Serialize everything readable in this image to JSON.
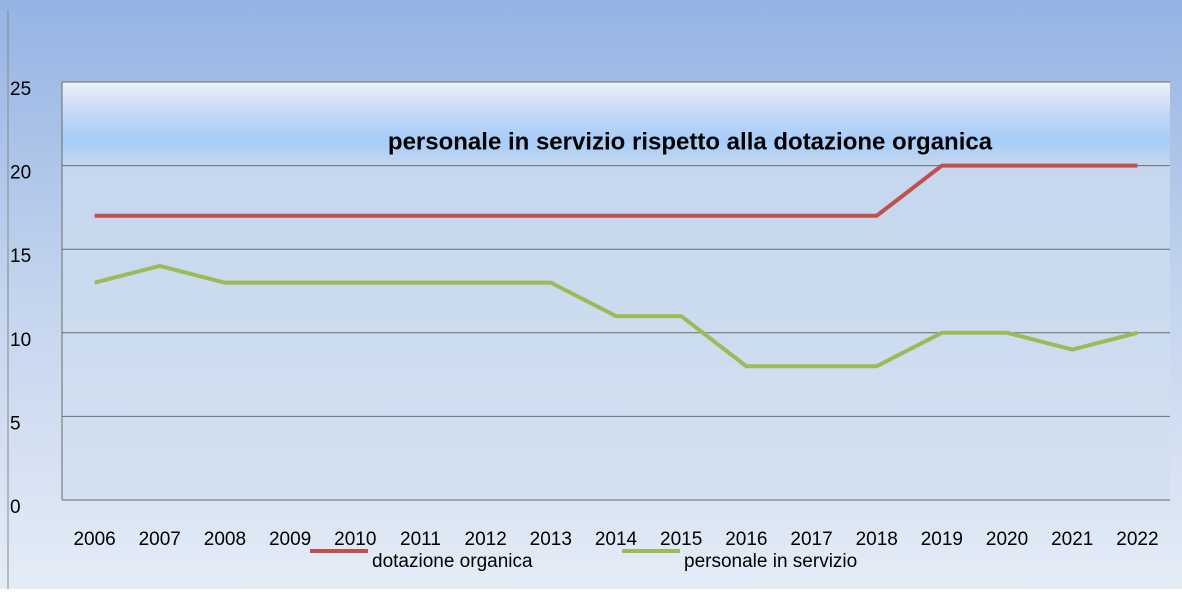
{
  "chart_data": {
    "type": "line",
    "title": "personale in servizio rispetto alla dotazione organica",
    "categories": [
      "2006",
      "2007",
      "2008",
      "2009",
      "2010",
      "2011",
      "2012",
      "2013",
      "2014",
      "2015",
      "2016",
      "2017",
      "2018",
      "2019",
      "2020",
      "2021",
      "2022"
    ],
    "series": [
      {
        "name": "dotazione organica",
        "color": "#c0504d",
        "values": [
          17,
          17,
          17,
          17,
          17,
          17,
          17,
          17,
          17,
          17,
          17,
          17,
          17,
          20,
          20,
          20,
          20
        ]
      },
      {
        "name": "personale in servizio",
        "color": "#9bbb59",
        "values": [
          13,
          14,
          13,
          13,
          13,
          13,
          13,
          13,
          11,
          11,
          8,
          8,
          8,
          10,
          10,
          9,
          10
        ]
      }
    ],
    "ylim": [
      0,
      25
    ],
    "yticks": [
      0,
      5,
      10,
      15,
      20,
      25
    ],
    "grid": true,
    "legend": "bottom"
  }
}
